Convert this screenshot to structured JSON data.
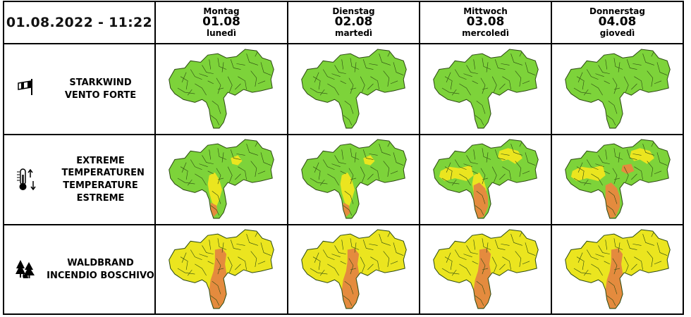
{
  "header": {
    "date_time": "01.08.2022 - 11:22"
  },
  "days": [
    {
      "name_de": "Montag",
      "date": "01.08",
      "name_it": "lunedì"
    },
    {
      "name_de": "Dienstag",
      "date": "02.08",
      "name_it": "martedì"
    },
    {
      "name_de": "Mittwoch",
      "date": "03.08",
      "name_it": "mercoledì"
    },
    {
      "name_de": "Donnerstag",
      "date": "04.08",
      "name_it": "giovedì"
    }
  ],
  "hazards": [
    {
      "label_de": "STARKWIND",
      "label_it": "VENTO FORTE",
      "icon": "windsock-icon",
      "maps": [
        {
          "base": "green",
          "patches": []
        },
        {
          "base": "green",
          "patches": []
        },
        {
          "base": "green",
          "patches": []
        },
        {
          "base": "green",
          "patches": []
        }
      ]
    },
    {
      "label_de": "EXTREME TEMPERATUREN",
      "label_it": "TEMPERATURE ESTREME",
      "icon": "thermometer-icon",
      "maps": [
        {
          "base": "green",
          "patches": [
            "yellow-east-small",
            "yellow-south",
            "orange-south-small"
          ]
        },
        {
          "base": "green",
          "patches": [
            "yellow-east-small",
            "yellow-south",
            "orange-south-small"
          ]
        },
        {
          "base": "green",
          "patches": [
            "yellow-north",
            "yellow-west",
            "yellow-south",
            "orange-south"
          ]
        },
        {
          "base": "green",
          "patches": [
            "yellow-north",
            "yellow-west",
            "orange-center",
            "orange-south"
          ]
        }
      ]
    },
    {
      "label_de": "WALDBRAND",
      "label_it": "INCENDIO BOSCHIVO",
      "icon": "forest-fire-icon",
      "maps": [
        {
          "base": "yellow",
          "patches": [
            "orange-center-long"
          ]
        },
        {
          "base": "yellow",
          "patches": [
            "orange-center-long"
          ]
        },
        {
          "base": "yellow",
          "patches": [
            "orange-center-long"
          ]
        },
        {
          "base": "yellow",
          "patches": [
            "orange-center-long"
          ]
        }
      ]
    }
  ],
  "colors": {
    "green": "#7dd33a",
    "yellow": "#ebe51f",
    "orange": "#e48b3e",
    "border": "#2c4a12"
  }
}
